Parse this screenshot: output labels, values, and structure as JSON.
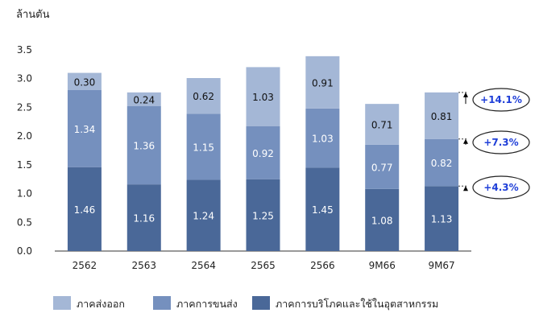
{
  "chart_data": {
    "type": "bar",
    "stacked": true,
    "unit_label": "ล้านตัน",
    "categories": [
      "2562",
      "2563",
      "2564",
      "2565",
      "2566",
      "9M66",
      "9M67"
    ],
    "series": [
      {
        "name": "ภาคการบริโภคและใช้ในอุตสาหกรรม",
        "values": [
          1.46,
          1.16,
          1.24,
          1.25,
          1.45,
          1.08,
          1.13
        ],
        "color": "#4a6898"
      },
      {
        "name": "ภาคการขนส่ง",
        "values": [
          1.34,
          1.36,
          1.15,
          0.92,
          1.03,
          0.77,
          0.82
        ],
        "color": "#7590be"
      },
      {
        "name": "ภาคส่งออก",
        "values": [
          0.3,
          0.24,
          0.62,
          1.03,
          0.91,
          0.71,
          0.81
        ],
        "color": "#a4b7d6"
      }
    ],
    "yticks": [
      "0.0",
      "0.5",
      "1.0",
      "1.5",
      "2.0",
      "2.5",
      "3.0",
      "3.5"
    ],
    "ylim": [
      0,
      3.5
    ],
    "legend_order": [
      "ภาคส่งออก",
      "ภาคการขนส่ง",
      "ภาคการบริโภคและใช้ในอุตสาหกรรม"
    ],
    "legend_position": "bottom",
    "annotations": [
      {
        "text": "+14.1%",
        "level": "total"
      },
      {
        "text": "+7.3%",
        "level": "transport"
      },
      {
        "text": "+4.3%",
        "level": "consumption"
      }
    ],
    "annotation_color": "#1f3fd8"
  }
}
